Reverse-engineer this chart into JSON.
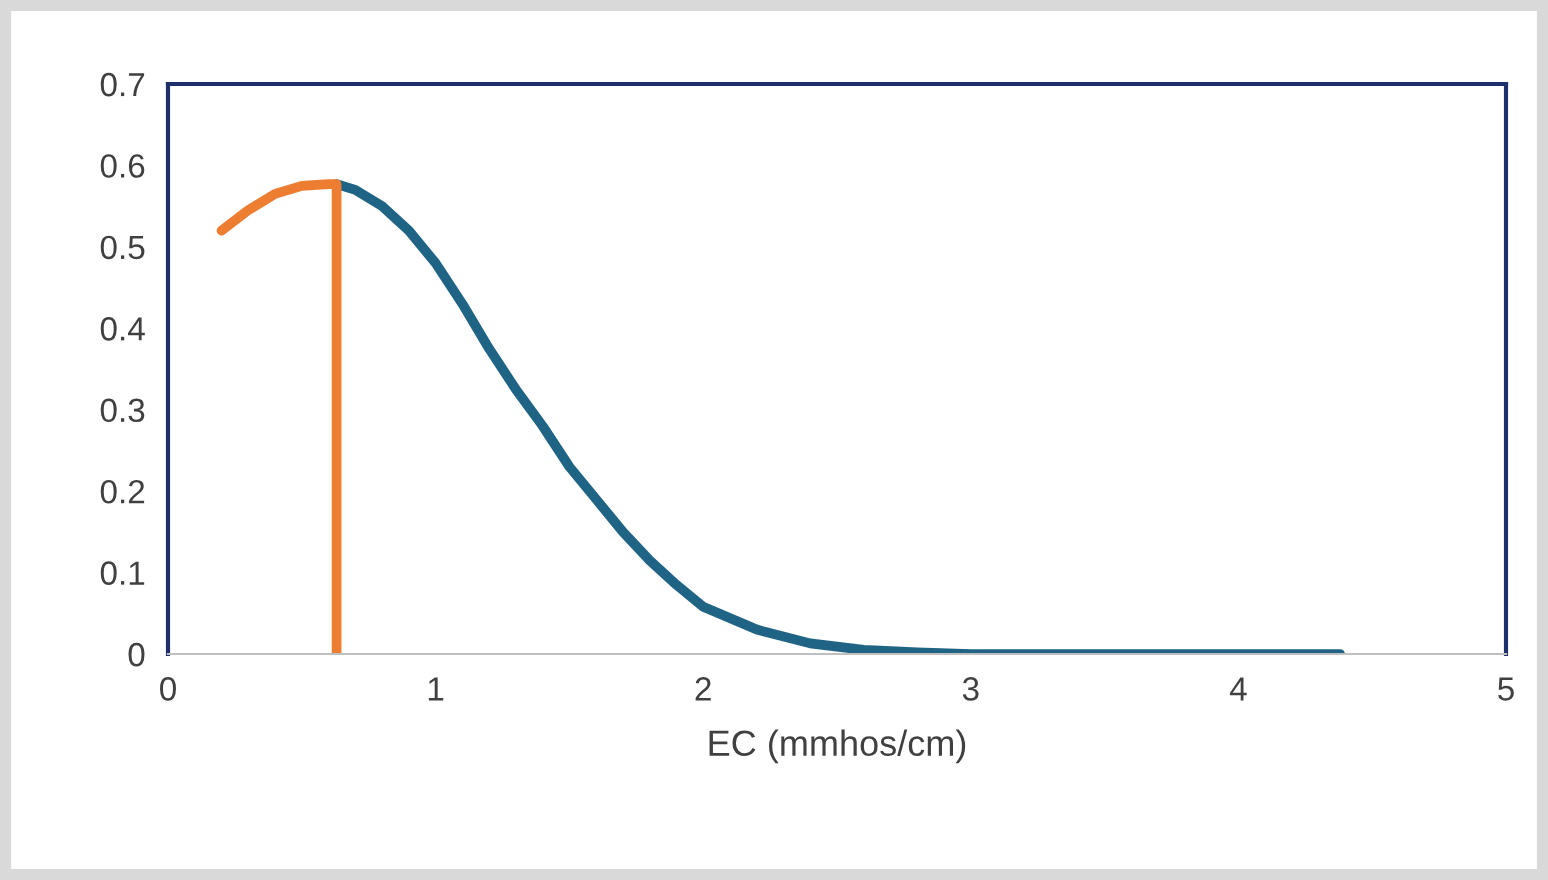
{
  "chart_data": {
    "type": "line",
    "xlabel": "EC (mmhos/cm)",
    "xlim": [
      0,
      5
    ],
    "ylim": [
      0,
      0.7
    ],
    "xticks": [
      0,
      1,
      2,
      3,
      4,
      5
    ],
    "yticks": [
      0,
      0.1,
      0.2,
      0.3,
      0.4,
      0.5,
      0.6,
      0.7
    ],
    "grid": false,
    "legend": false,
    "marker": "none",
    "line_style": "solid",
    "series": [
      {
        "color": "#1f6385",
        "x": [
          0.63,
          0.7,
          0.8,
          0.9,
          1.0,
          1.1,
          1.2,
          1.3,
          1.4,
          1.5,
          1.6,
          1.7,
          1.8,
          1.9,
          2.0,
          2.2,
          2.4,
          2.6,
          2.8,
          3.0,
          3.5,
          4.0,
          4.38
        ],
        "values": [
          0.577,
          0.57,
          0.55,
          0.52,
          0.48,
          0.43,
          0.375,
          0.325,
          0.28,
          0.23,
          0.19,
          0.15,
          0.115,
          0.085,
          0.058,
          0.03,
          0.013,
          0.005,
          0.002,
          0,
          0,
          0,
          0
        ]
      },
      {
        "color": "#ed7d31",
        "x": [
          0.2,
          0.3,
          0.4,
          0.5,
          0.6,
          0.63,
          0.63
        ],
        "values": [
          0.52,
          0.545,
          0.565,
          0.575,
          0.577,
          0.577,
          0
        ]
      }
    ]
  }
}
